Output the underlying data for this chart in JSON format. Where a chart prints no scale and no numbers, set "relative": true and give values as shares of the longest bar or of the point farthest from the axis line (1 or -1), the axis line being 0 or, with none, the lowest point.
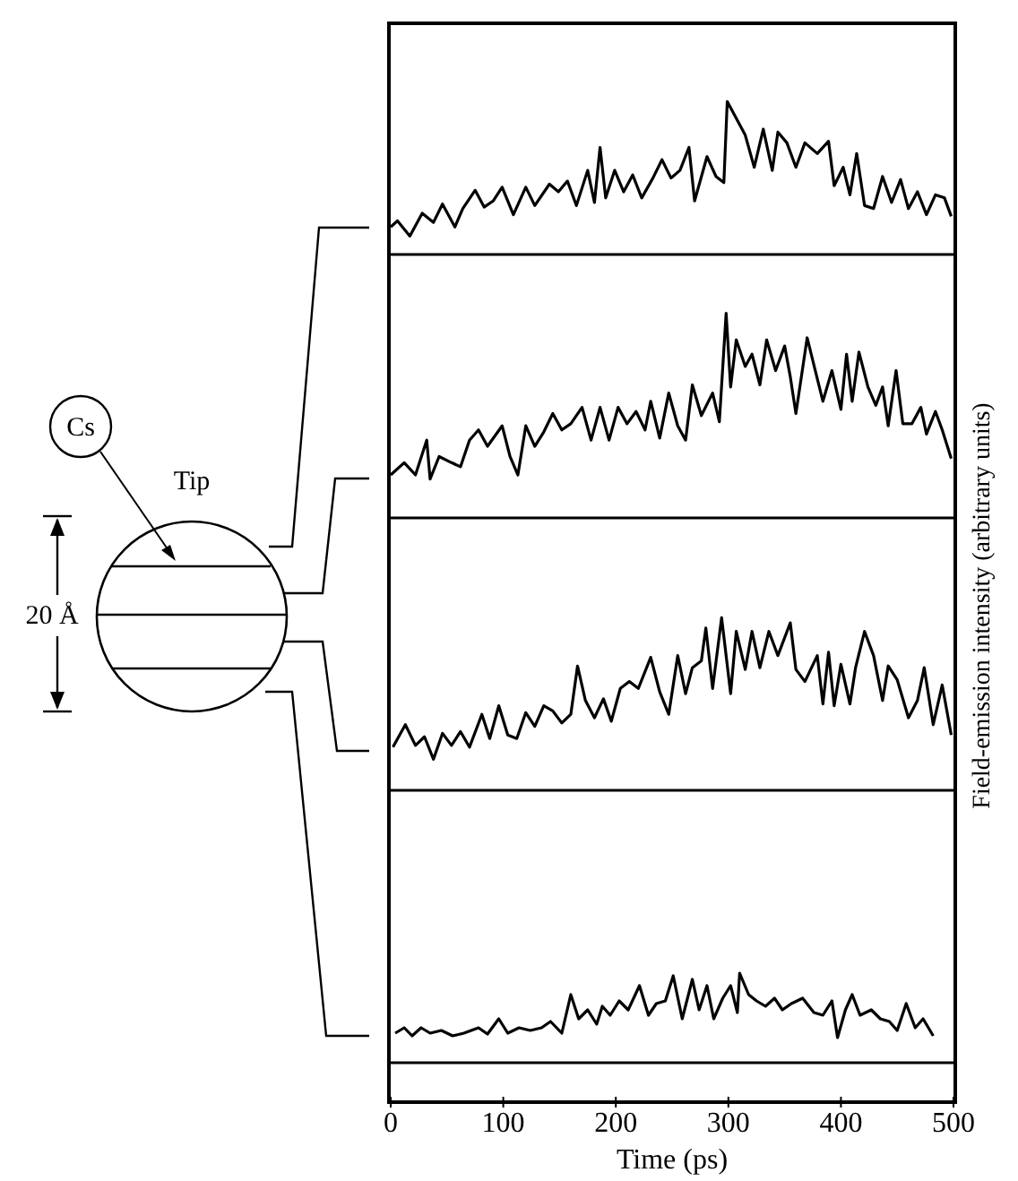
{
  "chart_data": [
    {
      "type": "line",
      "relative": true,
      "ylabel": "Field-emission intensity (arbitrary units)",
      "annotations": [
        "Cs",
        "Tip",
        "20 Å"
      ],
      "xlim": [
        0,
        500
      ],
      "tick_labels": false,
      "series": [
        {
          "color": "#000000",
          "x": [
            0,
            6,
            17,
            28,
            38,
            46,
            57,
            64,
            75,
            83,
            91,
            99,
            109,
            120,
            128,
            141,
            149,
            157,
            165,
            175,
            181,
            186,
            191,
            199,
            207,
            215,
            223,
            233,
            241,
            249,
            257,
            265,
            270,
            281,
            289,
            296,
            299,
            307,
            315,
            323,
            331,
            339,
            344,
            352,
            360,
            368,
            379,
            389,
            394,
            402,
            408,
            414,
            421,
            429,
            437,
            445,
            453,
            460,
            468,
            476,
            484,
            492,
            498
          ],
          "values": [
            0.18,
            0.22,
            0.12,
            0.27,
            0.21,
            0.33,
            0.18,
            0.3,
            0.42,
            0.31,
            0.35,
            0.44,
            0.26,
            0.44,
            0.32,
            0.46,
            0.41,
            0.48,
            0.32,
            0.55,
            0.34,
            0.7,
            0.37,
            0.55,
            0.41,
            0.52,
            0.37,
            0.5,
            0.62,
            0.5,
            0.55,
            0.7,
            0.35,
            0.64,
            0.51,
            0.47,
            1.0,
            0.89,
            0.78,
            0.57,
            0.82,
            0.55,
            0.8,
            0.73,
            0.57,
            0.73,
            0.66,
            0.74,
            0.45,
            0.57,
            0.39,
            0.66,
            0.32,
            0.3,
            0.51,
            0.34,
            0.49,
            0.3,
            0.41,
            0.26,
            0.39,
            0.37,
            0.25
          ]
        }
      ]
    },
    {
      "type": "line",
      "relative": true,
      "xlim": [
        0,
        500
      ],
      "tick_labels": false,
      "series": [
        {
          "color": "#000000",
          "x": [
            0,
            12,
            22,
            32,
            35,
            43,
            54,
            62,
            70,
            78,
            86,
            99,
            106,
            113,
            120,
            128,
            136,
            144,
            152,
            160,
            170,
            178,
            186,
            194,
            202,
            210,
            218,
            226,
            231,
            239,
            247,
            255,
            262,
            268,
            276,
            286,
            292,
            298,
            302,
            307,
            315,
            321,
            328,
            334,
            342,
            350,
            355,
            360,
            370,
            379,
            384,
            392,
            400,
            405,
            410,
            416,
            424,
            431,
            437,
            442,
            449,
            455,
            463,
            471,
            476,
            484,
            490,
            498
          ],
          "values": [
            0.21,
            0.27,
            0.21,
            0.38,
            0.19,
            0.3,
            0.27,
            0.25,
            0.38,
            0.43,
            0.35,
            0.45,
            0.3,
            0.21,
            0.45,
            0.35,
            0.42,
            0.51,
            0.43,
            0.46,
            0.54,
            0.38,
            0.54,
            0.38,
            0.54,
            0.46,
            0.52,
            0.43,
            0.57,
            0.39,
            0.61,
            0.45,
            0.38,
            0.65,
            0.5,
            0.61,
            0.47,
            1.0,
            0.64,
            0.87,
            0.74,
            0.8,
            0.65,
            0.87,
            0.72,
            0.84,
            0.69,
            0.51,
            0.88,
            0.68,
            0.57,
            0.72,
            0.53,
            0.8,
            0.57,
            0.81,
            0.64,
            0.55,
            0.64,
            0.45,
            0.72,
            0.46,
            0.46,
            0.54,
            0.41,
            0.52,
            0.43,
            0.29
          ]
        }
      ]
    },
    {
      "type": "line",
      "relative": true,
      "xlim": [
        0,
        500
      ],
      "tick_labels": false,
      "series": [
        {
          "color": "#000000",
          "x": [
            2,
            13,
            22,
            30,
            38,
            46,
            54,
            62,
            70,
            81,
            88,
            96,
            104,
            112,
            120,
            128,
            136,
            144,
            152,
            160,
            166,
            173,
            181,
            189,
            196,
            204,
            212,
            220,
            231,
            239,
            247,
            255,
            262,
            268,
            276,
            280,
            286,
            294,
            302,
            307,
            315,
            321,
            328,
            336,
            344,
            355,
            360,
            368,
            379,
            384,
            389,
            394,
            400,
            408,
            413,
            421,
            429,
            437,
            442,
            450,
            460,
            468,
            474,
            482,
            490,
            498
          ],
          "values": [
            0.25,
            0.38,
            0.26,
            0.31,
            0.18,
            0.33,
            0.26,
            0.34,
            0.25,
            0.44,
            0.3,
            0.49,
            0.32,
            0.3,
            0.45,
            0.37,
            0.49,
            0.46,
            0.39,
            0.44,
            0.72,
            0.52,
            0.42,
            0.53,
            0.4,
            0.59,
            0.63,
            0.59,
            0.77,
            0.57,
            0.44,
            0.78,
            0.56,
            0.71,
            0.75,
            0.94,
            0.59,
            1.0,
            0.56,
            0.92,
            0.7,
            0.92,
            0.71,
            0.92,
            0.78,
            0.97,
            0.7,
            0.63,
            0.78,
            0.5,
            0.8,
            0.49,
            0.73,
            0.5,
            0.71,
            0.92,
            0.78,
            0.52,
            0.72,
            0.64,
            0.42,
            0.52,
            0.71,
            0.38,
            0.61,
            0.32
          ]
        }
      ]
    },
    {
      "type": "line",
      "relative": true,
      "xlabel": "Time (ps)",
      "xlim": [
        0,
        500
      ],
      "xticks": [
        0,
        100,
        200,
        300,
        400,
        500
      ],
      "tick_labels": "x",
      "series": [
        {
          "color": "#000000",
          "x": [
            4,
            12,
            19,
            27,
            35,
            45,
            55,
            65,
            78,
            86,
            96,
            104,
            114,
            124,
            134,
            142,
            152,
            160,
            167,
            175,
            183,
            188,
            195,
            203,
            211,
            221,
            229,
            236,
            244,
            251,
            259,
            268,
            274,
            281,
            287,
            295,
            302,
            308,
            310,
            318,
            325,
            333,
            341,
            348,
            356,
            366,
            376,
            384,
            392,
            397,
            404,
            410,
            417,
            427,
            435,
            443,
            450,
            458,
            466,
            473,
            482
          ],
          "values": [
            0.33,
            0.39,
            0.3,
            0.39,
            0.33,
            0.36,
            0.3,
            0.33,
            0.39,
            0.32,
            0.49,
            0.33,
            0.39,
            0.36,
            0.39,
            0.46,
            0.33,
            0.76,
            0.49,
            0.59,
            0.43,
            0.63,
            0.53,
            0.69,
            0.59,
            0.86,
            0.53,
            0.66,
            0.69,
            0.97,
            0.49,
            0.93,
            0.59,
            0.86,
            0.49,
            0.72,
            0.86,
            0.56,
            1.0,
            0.76,
            0.69,
            0.63,
            0.72,
            0.59,
            0.66,
            0.72,
            0.56,
            0.53,
            0.69,
            0.28,
            0.59,
            0.76,
            0.53,
            0.59,
            0.49,
            0.46,
            0.36,
            0.66,
            0.39,
            0.49,
            0.3
          ]
        }
      ]
    }
  ]
}
